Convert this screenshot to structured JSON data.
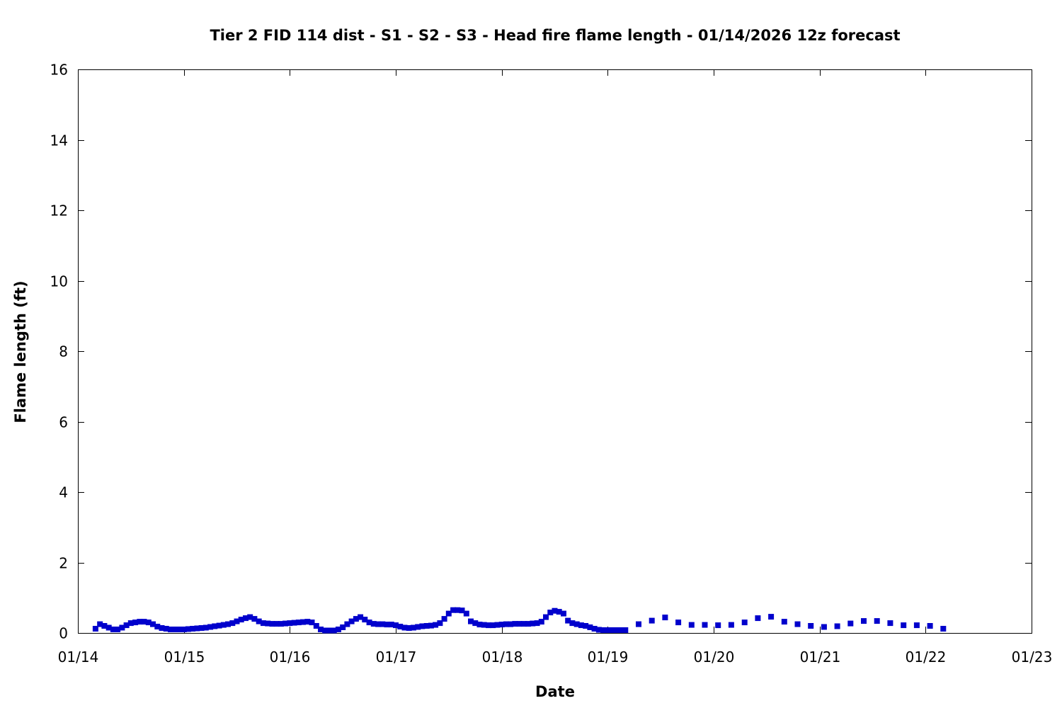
{
  "chart_data": {
    "type": "scatter",
    "title": "Tier 2 FID 114 dist - S1 - S2 - S3 - Head fire flame length - 01/14/2026 12z forecast",
    "xlabel": "Date",
    "ylabel": "Flame length (ft)",
    "xlim": [
      "01/14",
      "01/23"
    ],
    "ylim": [
      0,
      16
    ],
    "x_ticks": [
      "01/14",
      "01/15",
      "01/16",
      "01/17",
      "01/18",
      "01/19",
      "01/20",
      "01/21",
      "01/22",
      "01/23"
    ],
    "y_ticks": [
      "0",
      "2",
      "4",
      "6",
      "8",
      "10",
      "12",
      "14",
      "16"
    ],
    "grid": false,
    "legend": "none",
    "series_color": "#0000cc",
    "series": [
      {
        "x": [
          "01/14 04:00",
          "01/14 05:00",
          "01/14 06:00",
          "01/14 07:00",
          "01/14 08:00",
          "01/14 09:00",
          "01/14 10:00",
          "01/14 11:00",
          "01/14 12:00",
          "01/14 13:00",
          "01/14 14:00",
          "01/14 15:00",
          "01/14 16:00",
          "01/14 17:00",
          "01/14 18:00",
          "01/14 19:00",
          "01/14 20:00",
          "01/14 21:00",
          "01/14 22:00",
          "01/14 23:00",
          "01/15 00:00",
          "01/15 01:00",
          "01/15 02:00",
          "01/15 03:00",
          "01/15 04:00",
          "01/15 05:00",
          "01/15 06:00",
          "01/15 07:00",
          "01/15 08:00",
          "01/15 09:00",
          "01/15 10:00",
          "01/15 11:00",
          "01/15 12:00",
          "01/15 13:00",
          "01/15 14:00",
          "01/15 15:00",
          "01/15 16:00",
          "01/15 17:00",
          "01/15 18:00",
          "01/15 19:00",
          "01/15 20:00",
          "01/15 21:00",
          "01/15 22:00",
          "01/15 23:00",
          "01/16 00:00",
          "01/16 01:00",
          "01/16 02:00",
          "01/16 03:00",
          "01/16 04:00",
          "01/16 05:00",
          "01/16 06:00",
          "01/16 07:00",
          "01/16 08:00",
          "01/16 09:00",
          "01/16 10:00",
          "01/16 11:00",
          "01/16 12:00",
          "01/16 13:00",
          "01/16 14:00",
          "01/16 15:00",
          "01/16 16:00",
          "01/16 17:00",
          "01/16 18:00",
          "01/16 19:00",
          "01/16 20:00",
          "01/16 21:00",
          "01/16 22:00",
          "01/16 23:00",
          "01/17 00:00",
          "01/17 01:00",
          "01/17 02:00",
          "01/17 03:00",
          "01/17 04:00",
          "01/17 05:00",
          "01/17 06:00",
          "01/17 07:00",
          "01/17 08:00",
          "01/17 09:00",
          "01/17 10:00",
          "01/17 11:00",
          "01/17 12:00",
          "01/17 13:00",
          "01/17 14:00",
          "01/17 15:00",
          "01/17 16:00",
          "01/17 17:00",
          "01/17 18:00",
          "01/17 19:00",
          "01/17 20:00",
          "01/17 21:00",
          "01/17 22:00",
          "01/17 23:00",
          "01/18 00:00",
          "01/18 01:00",
          "01/18 02:00",
          "01/18 03:00",
          "01/18 04:00",
          "01/18 05:00",
          "01/18 06:00",
          "01/18 07:00",
          "01/18 08:00",
          "01/18 09:00",
          "01/18 10:00",
          "01/18 11:00",
          "01/18 12:00",
          "01/18 13:00",
          "01/18 14:00",
          "01/18 15:00",
          "01/18 16:00",
          "01/18 17:00",
          "01/18 18:00",
          "01/18 19:00",
          "01/18 20:00",
          "01/18 21:00",
          "01/18 22:00",
          "01/18 23:00",
          "01/19 00:00",
          "01/19 01:00",
          "01/19 02:00",
          "01/19 03:00",
          "01/19 04:00",
          "01/19 07:00",
          "01/19 10:00",
          "01/19 13:00",
          "01/19 16:00",
          "01/19 19:00",
          "01/19 22:00",
          "01/20 01:00",
          "01/20 04:00",
          "01/20 07:00",
          "01/20 10:00",
          "01/20 13:00",
          "01/20 16:00",
          "01/20 19:00",
          "01/20 22:00",
          "01/21 01:00",
          "01/21 04:00",
          "01/21 07:00",
          "01/21 10:00",
          "01/21 13:00",
          "01/21 16:00",
          "01/21 19:00",
          "01/21 22:00",
          "01/22 01:00",
          "01/22 04:00"
        ],
        "y": [
          0.12,
          0.25,
          0.2,
          0.15,
          0.1,
          0.1,
          0.15,
          0.22,
          0.28,
          0.3,
          0.32,
          0.32,
          0.3,
          0.25,
          0.18,
          0.14,
          0.12,
          0.1,
          0.1,
          0.1,
          0.1,
          0.11,
          0.12,
          0.13,
          0.14,
          0.15,
          0.17,
          0.19,
          0.21,
          0.23,
          0.25,
          0.28,
          0.33,
          0.38,
          0.42,
          0.45,
          0.4,
          0.33,
          0.28,
          0.27,
          0.26,
          0.26,
          0.26,
          0.27,
          0.28,
          0.29,
          0.3,
          0.31,
          0.32,
          0.3,
          0.2,
          0.1,
          0.07,
          0.07,
          0.07,
          0.1,
          0.16,
          0.25,
          0.33,
          0.4,
          0.45,
          0.38,
          0.3,
          0.26,
          0.25,
          0.25,
          0.24,
          0.24,
          0.22,
          0.18,
          0.15,
          0.14,
          0.15,
          0.17,
          0.19,
          0.2,
          0.21,
          0.23,
          0.28,
          0.4,
          0.55,
          0.65,
          0.65,
          0.64,
          0.55,
          0.33,
          0.28,
          0.24,
          0.23,
          0.22,
          0.22,
          0.23,
          0.24,
          0.25,
          0.25,
          0.26,
          0.26,
          0.26,
          0.26,
          0.27,
          0.28,
          0.32,
          0.45,
          0.58,
          0.63,
          0.6,
          0.55,
          0.35,
          0.28,
          0.25,
          0.22,
          0.2,
          0.16,
          0.12,
          0.09,
          0.08,
          0.08,
          0.08,
          0.08,
          0.08,
          0.08,
          0.25,
          0.35,
          0.44,
          0.3,
          0.23,
          0.23,
          0.22,
          0.23,
          0.3,
          0.42,
          0.46,
          0.32,
          0.25,
          0.2,
          0.17,
          0.19,
          0.27,
          0.34,
          0.34,
          0.28,
          0.22,
          0.22,
          0.2,
          0.12
        ]
      }
    ]
  }
}
